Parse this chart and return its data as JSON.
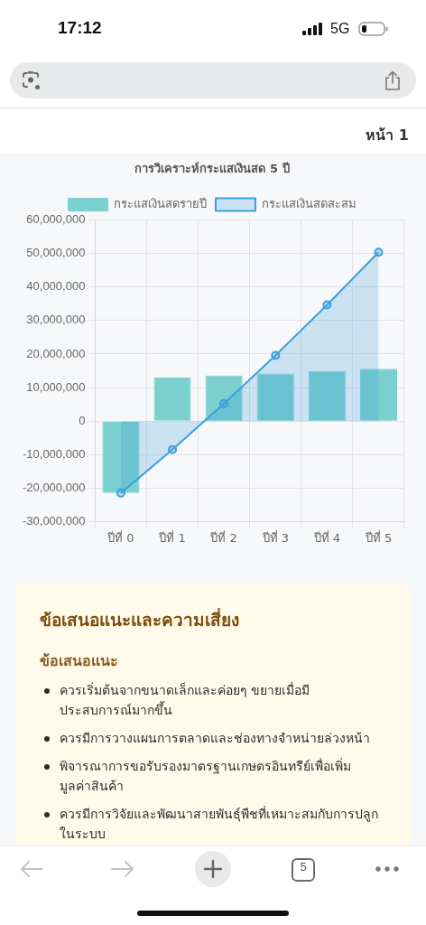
{
  "chart_data": {
    "type": "bar",
    "title": "การวิเคราะห์กระแสเงินสด 5 ปี",
    "categories": [
      "ปีที่ 0",
      "ปีที่ 1",
      "ปีที่ 2",
      "ปีที่ 3",
      "ปีที่ 4",
      "ปีที่ 5"
    ],
    "series": [
      {
        "name": "กระแสเงินสดรายปี",
        "color": "#7acfcf",
        "values": [
          -21500000,
          13000000,
          13600000,
          14200000,
          14900000,
          15600000
        ]
      },
      {
        "name": "กระแสเงินสดสะสม",
        "type": "area",
        "color": "#3d9fdd",
        "values": [
          -21500000,
          -8500000,
          5200000,
          19600000,
          34700000,
          50400000
        ]
      }
    ],
    "ylim": [
      -30000000,
      60000000
    ],
    "yticks": [
      {
        "value": -30000000,
        "label": "-30,000,000"
      },
      {
        "value": -20000000,
        "label": "-20,000,000"
      },
      {
        "value": -10000000,
        "label": "-10,000,000"
      },
      0,
      {
        "value": 10000000,
        "label": "10,000,000"
      },
      {
        "value": 20000000,
        "label": "20,000,000"
      },
      {
        "value": 30000000,
        "label": "30,000,000"
      },
      {
        "value": 40000000,
        "label": "40,000,000"
      },
      {
        "value": 50000000,
        "label": "50,000,000"
      },
      {
        "value": 60000000,
        "label": "60,000,000"
      }
    ],
    "grid": true,
    "legend": "top",
    "marker": "circle",
    "annotations": [
      "17:12",
      "5G",
      "หน้า 1",
      "ข้อเสนอแนะและความเสี่ยง",
      "ข้อเสนอแนะ",
      "ควรเริ่มต้นจากขนาดเล็กและค่อยๆ ขยายเมื่อมีประสบการณ์มากขึ้น",
      "ควรมีการวางแผนการตลาดและช่องทางจำหน่ายล่วงหน้า",
      "พิจารณาการขอรับรองมาตรฐานเกษตรอินทรีย์เพื่อเพิ่มมูลค่าสินค้า",
      "ควรมีการวิจัยและพัฒนาสายพันธุ์พืชที่เหมาะสมกับการปลูกในระบบ",
      "5"
    ]
  }
}
